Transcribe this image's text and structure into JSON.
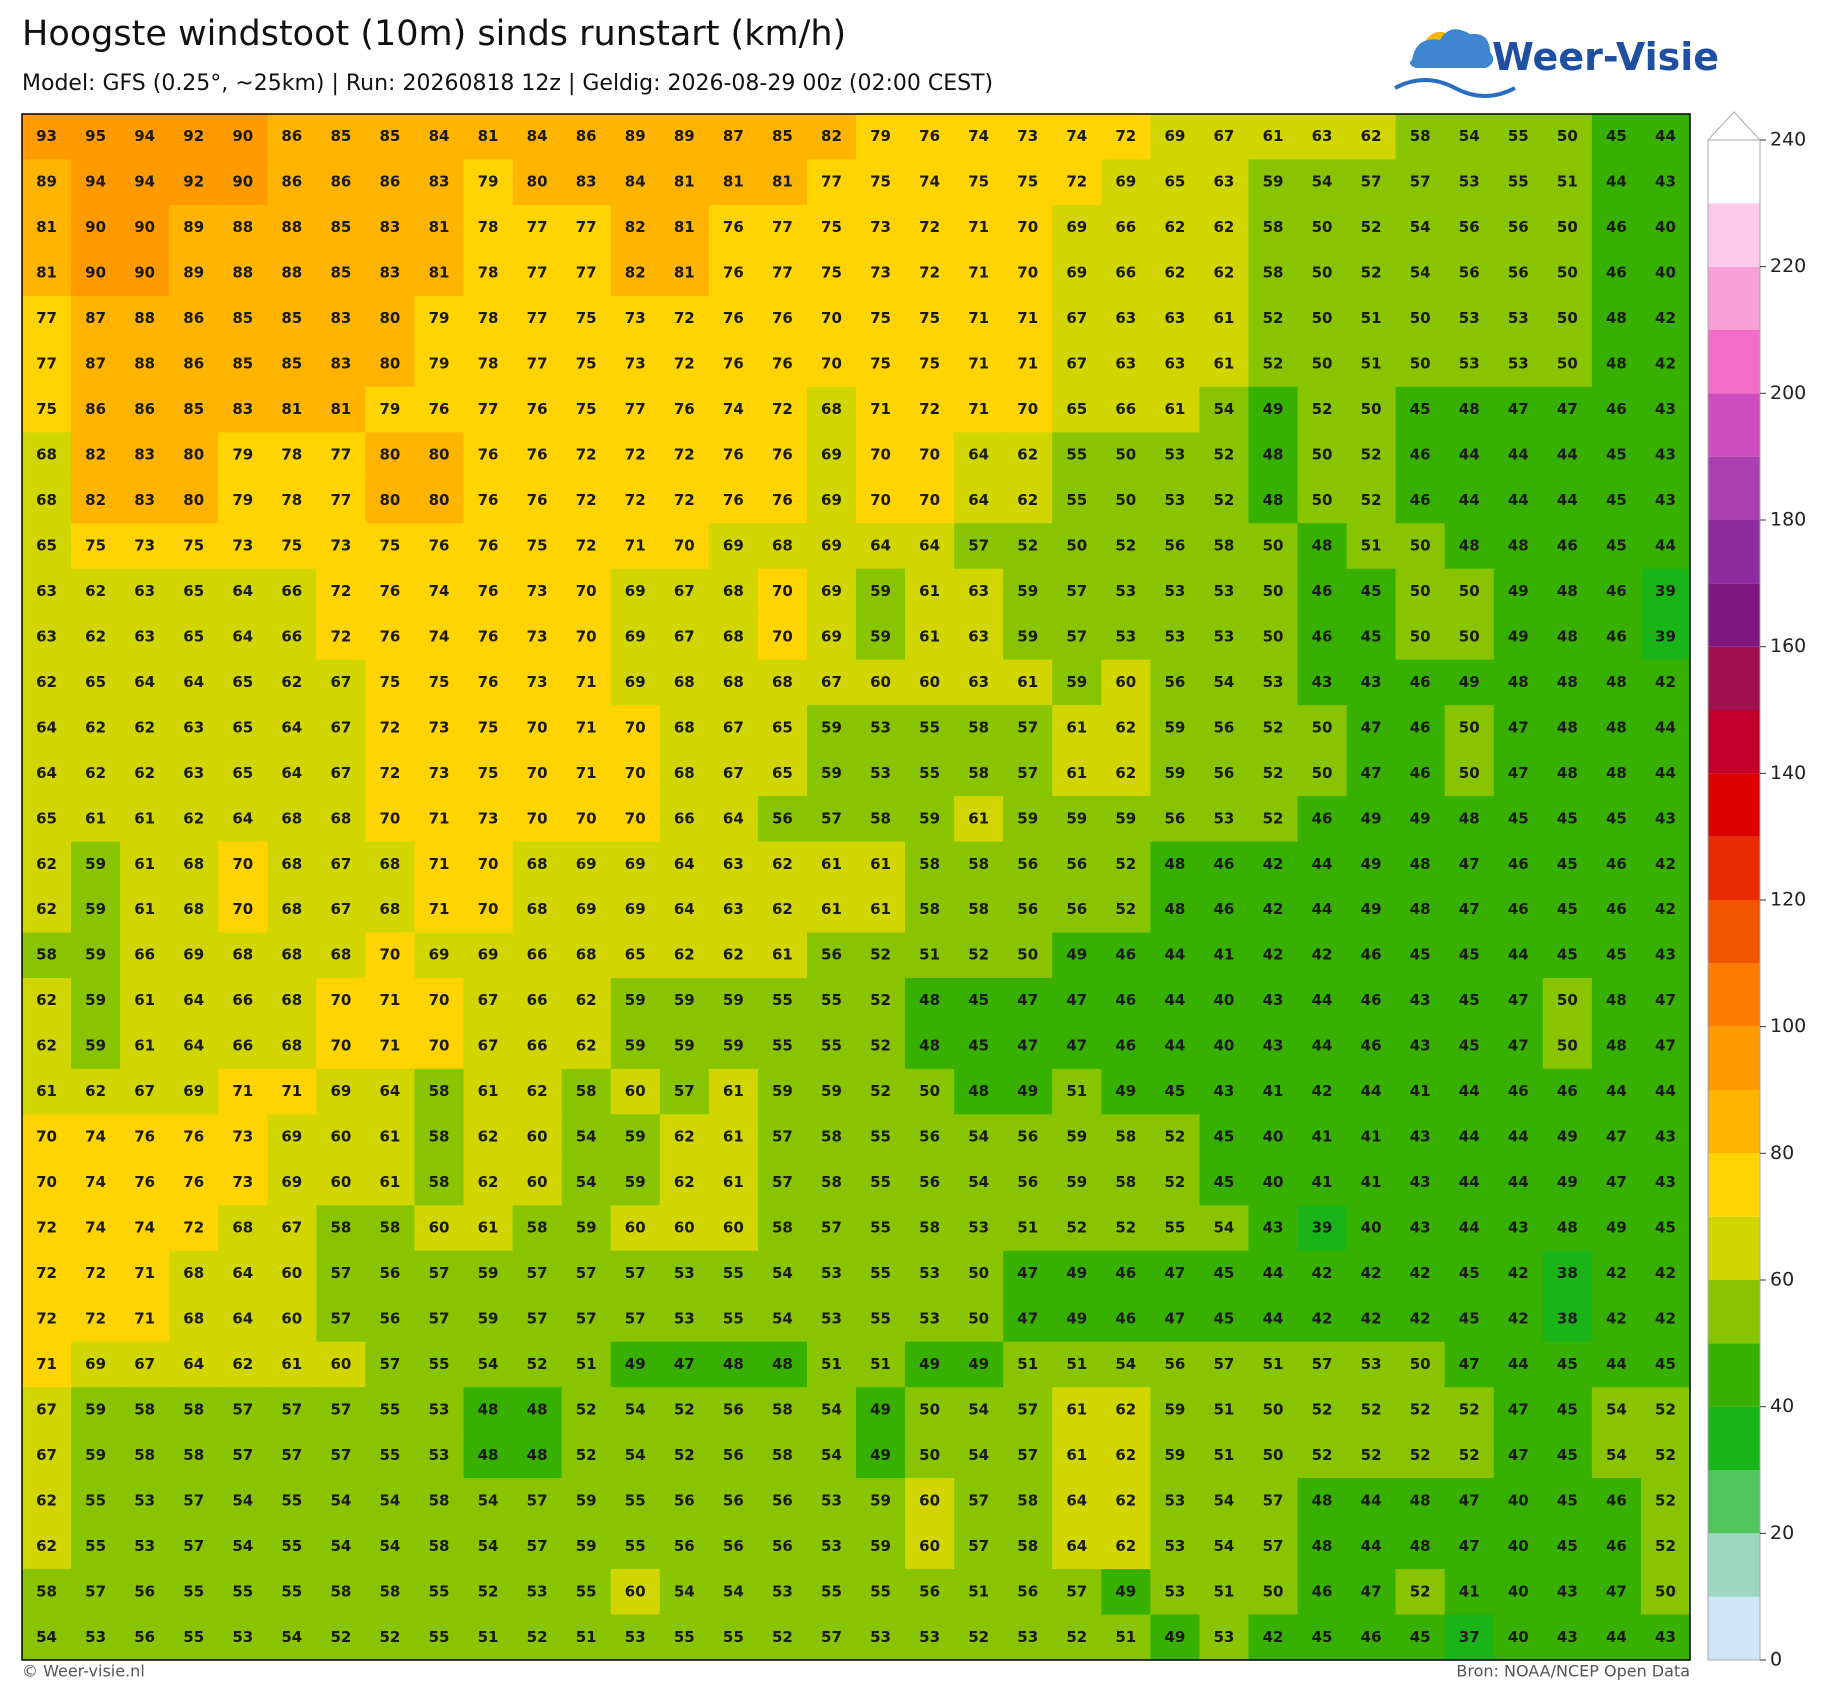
{
  "header": {
    "title": "Hoogste windstoot (10m) sinds runstart (km/h)",
    "subtitle": "Model: GFS (0.25°, ~25km)  |  Run: 20260818 12z  |  Geldig: 2026-08-29 00z (02:00 CEST)",
    "logo": "Weer-Visie"
  },
  "footer": {
    "left": "© Weer-visie.nl",
    "right": "Bron: NOAA/NCEP Open Data"
  },
  "colorbar": {
    "ylim": [
      0,
      240
    ],
    "yticks": [
      0,
      20,
      40,
      60,
      80,
      100,
      120,
      140,
      160,
      180,
      200,
      220,
      240
    ],
    "levels": [
      0,
      10,
      20,
      30,
      40,
      50,
      60,
      70,
      80,
      90,
      100,
      110,
      120,
      130,
      140,
      150,
      160,
      170,
      180,
      190,
      200,
      210,
      220,
      230,
      240
    ],
    "colors": [
      "#cde6f8",
      "#9ad8c0",
      "#52c45e",
      "#18b418",
      "#38b000",
      "#88c400",
      "#d2d600",
      "#ffd400",
      "#ffb400",
      "#ff9a00",
      "#ff7c00",
      "#f25400",
      "#e62c00",
      "#de0000",
      "#c00028",
      "#a0104e",
      "#7e1880",
      "#8c2ca0",
      "#ac40b0",
      "#d04cbe",
      "#f26cc8",
      "#f7a0d8",
      "#fccbe9",
      "#ffffff"
    ]
  },
  "grid": {
    "values": [
      [
        93,
        95,
        94,
        92,
        90,
        86,
        85,
        85,
        84,
        81,
        84,
        86,
        89,
        89,
        87,
        85,
        82,
        79,
        76,
        74,
        73,
        74,
        72,
        69,
        67,
        61,
        63,
        62,
        58,
        54,
        55,
        50,
        45,
        44
      ],
      [
        89,
        94,
        94,
        92,
        90,
        86,
        86,
        86,
        83,
        79,
        80,
        83,
        84,
        81,
        81,
        81,
        77,
        75,
        74,
        75,
        75,
        72,
        69,
        65,
        63,
        59,
        54,
        57,
        57,
        53,
        55,
        51,
        44,
        43
      ],
      [
        81,
        90,
        90,
        89,
        88,
        88,
        85,
        83,
        81,
        78,
        77,
        77,
        82,
        81,
        76,
        77,
        75,
        73,
        72,
        71,
        70,
        69,
        66,
        62,
        62,
        58,
        50,
        52,
        54,
        56,
        56,
        50,
        46,
        40
      ],
      [
        81,
        90,
        90,
        89,
        88,
        88,
        85,
        83,
        81,
        78,
        77,
        77,
        82,
        81,
        76,
        77,
        75,
        73,
        72,
        71,
        70,
        69,
        66,
        62,
        62,
        58,
        50,
        52,
        54,
        56,
        56,
        50,
        46,
        40
      ],
      [
        77,
        87,
        88,
        86,
        85,
        85,
        83,
        80,
        79,
        78,
        77,
        75,
        73,
        72,
        76,
        76,
        70,
        75,
        75,
        71,
        71,
        67,
        63,
        63,
        61,
        52,
        50,
        51,
        50,
        53,
        53,
        50,
        48,
        42
      ],
      [
        77,
        87,
        88,
        86,
        85,
        85,
        83,
        80,
        79,
        78,
        77,
        75,
        73,
        72,
        76,
        76,
        70,
        75,
        75,
        71,
        71,
        67,
        63,
        63,
        61,
        52,
        50,
        51,
        50,
        53,
        53,
        50,
        48,
        42
      ],
      [
        75,
        86,
        86,
        85,
        83,
        81,
        81,
        79,
        76,
        77,
        76,
        75,
        77,
        76,
        74,
        72,
        68,
        71,
        72,
        71,
        70,
        65,
        66,
        61,
        54,
        49,
        52,
        50,
        45,
        48,
        47,
        47,
        46,
        43
      ],
      [
        68,
        82,
        83,
        80,
        79,
        78,
        77,
        80,
        80,
        76,
        76,
        72,
        72,
        72,
        76,
        76,
        69,
        70,
        70,
        64,
        62,
        55,
        50,
        53,
        52,
        48,
        50,
        52,
        46,
        44,
        44,
        44,
        45,
        43
      ],
      [
        68,
        82,
        83,
        80,
        79,
        78,
        77,
        80,
        80,
        76,
        76,
        72,
        72,
        72,
        76,
        76,
        69,
        70,
        70,
        64,
        62,
        55,
        50,
        53,
        52,
        48,
        50,
        52,
        46,
        44,
        44,
        44,
        45,
        43
      ],
      [
        65,
        75,
        73,
        75,
        73,
        75,
        73,
        75,
        76,
        76,
        75,
        72,
        71,
        70,
        69,
        68,
        69,
        64,
        64,
        57,
        52,
        50,
        52,
        56,
        58,
        50,
        48,
        51,
        50,
        48,
        48,
        46,
        45,
        44
      ],
      [
        63,
        62,
        63,
        65,
        64,
        66,
        72,
        76,
        74,
        76,
        73,
        70,
        69,
        67,
        68,
        70,
        69,
        59,
        61,
        63,
        59,
        57,
        53,
        53,
        53,
        50,
        46,
        45,
        50,
        50,
        49,
        48,
        46,
        39
      ],
      [
        63,
        62,
        63,
        65,
        64,
        66,
        72,
        76,
        74,
        76,
        73,
        70,
        69,
        67,
        68,
        70,
        69,
        59,
        61,
        63,
        59,
        57,
        53,
        53,
        53,
        50,
        46,
        45,
        50,
        50,
        49,
        48,
        46,
        39
      ],
      [
        62,
        65,
        64,
        64,
        65,
        62,
        67,
        75,
        75,
        76,
        73,
        71,
        69,
        68,
        68,
        68,
        67,
        60,
        60,
        63,
        61,
        59,
        60,
        56,
        54,
        53,
        43,
        43,
        46,
        49,
        48,
        48,
        48,
        42
      ],
      [
        64,
        62,
        62,
        63,
        65,
        64,
        67,
        72,
        73,
        75,
        70,
        71,
        70,
        68,
        67,
        65,
        59,
        53,
        55,
        58,
        57,
        61,
        62,
        59,
        56,
        52,
        50,
        47,
        46,
        50,
        47,
        48,
        48,
        44
      ],
      [
        64,
        62,
        62,
        63,
        65,
        64,
        67,
        72,
        73,
        75,
        70,
        71,
        70,
        68,
        67,
        65,
        59,
        53,
        55,
        58,
        57,
        61,
        62,
        59,
        56,
        52,
        50,
        47,
        46,
        50,
        47,
        48,
        48,
        44
      ],
      [
        65,
        61,
        61,
        62,
        64,
        68,
        68,
        70,
        71,
        73,
        70,
        70,
        70,
        66,
        64,
        56,
        57,
        58,
        59,
        61,
        59,
        59,
        59,
        56,
        53,
        52,
        46,
        49,
        49,
        48,
        45,
        45,
        45,
        43
      ],
      [
        62,
        59,
        61,
        68,
        70,
        68,
        67,
        68,
        71,
        70,
        68,
        69,
        69,
        64,
        63,
        62,
        61,
        61,
        58,
        58,
        56,
        56,
        52,
        48,
        46,
        42,
        44,
        49,
        48,
        47,
        46,
        45,
        46,
        42
      ],
      [
        62,
        59,
        61,
        68,
        70,
        68,
        67,
        68,
        71,
        70,
        68,
        69,
        69,
        64,
        63,
        62,
        61,
        61,
        58,
        58,
        56,
        56,
        52,
        48,
        46,
        42,
        44,
        49,
        48,
        47,
        46,
        45,
        46,
        42
      ],
      [
        58,
        59,
        66,
        69,
        68,
        68,
        68,
        70,
        69,
        69,
        66,
        68,
        65,
        62,
        62,
        61,
        56,
        52,
        51,
        52,
        50,
        49,
        46,
        44,
        41,
        42,
        42,
        46,
        45,
        45,
        44,
        45,
        45,
        43
      ],
      [
        62,
        59,
        61,
        64,
        66,
        68,
        70,
        71,
        70,
        67,
        66,
        62,
        59,
        59,
        59,
        55,
        55,
        52,
        48,
        45,
        47,
        47,
        46,
        44,
        40,
        43,
        44,
        46,
        43,
        45,
        47,
        50,
        48,
        47
      ],
      [
        62,
        59,
        61,
        64,
        66,
        68,
        70,
        71,
        70,
        67,
        66,
        62,
        59,
        59,
        59,
        55,
        55,
        52,
        48,
        45,
        47,
        47,
        46,
        44,
        40,
        43,
        44,
        46,
        43,
        45,
        47,
        50,
        48,
        47
      ],
      [
        61,
        62,
        67,
        69,
        71,
        71,
        69,
        64,
        58,
        61,
        62,
        58,
        60,
        57,
        61,
        59,
        59,
        52,
        50,
        48,
        49,
        51,
        49,
        45,
        43,
        41,
        42,
        44,
        41,
        44,
        46,
        46,
        44,
        44
      ],
      [
        70,
        74,
        76,
        76,
        73,
        69,
        60,
        61,
        58,
        62,
        60,
        54,
        59,
        62,
        61,
        57,
        58,
        55,
        56,
        54,
        56,
        59,
        58,
        52,
        45,
        40,
        41,
        41,
        43,
        44,
        44,
        49,
        47,
        43
      ],
      [
        70,
        74,
        76,
        76,
        73,
        69,
        60,
        61,
        58,
        62,
        60,
        54,
        59,
        62,
        61,
        57,
        58,
        55,
        56,
        54,
        56,
        59,
        58,
        52,
        45,
        40,
        41,
        41,
        43,
        44,
        44,
        49,
        47,
        43
      ],
      [
        72,
        74,
        74,
        72,
        68,
        67,
        58,
        58,
        60,
        61,
        58,
        59,
        60,
        60,
        60,
        58,
        57,
        55,
        58,
        53,
        51,
        52,
        52,
        55,
        54,
        43,
        39,
        40,
        43,
        44,
        43,
        48,
        49,
        45
      ],
      [
        72,
        72,
        71,
        68,
        64,
        60,
        57,
        56,
        57,
        59,
        57,
        57,
        57,
        53,
        55,
        54,
        53,
        55,
        53,
        50,
        47,
        49,
        46,
        47,
        45,
        44,
        42,
        42,
        42,
        45,
        42,
        38,
        42,
        42
      ],
      [
        72,
        72,
        71,
        68,
        64,
        60,
        57,
        56,
        57,
        59,
        57,
        57,
        57,
        53,
        55,
        54,
        53,
        55,
        53,
        50,
        47,
        49,
        46,
        47,
        45,
        44,
        42,
        42,
        42,
        45,
        42,
        38,
        42,
        42
      ],
      [
        71,
        69,
        67,
        64,
        62,
        61,
        60,
        57,
        55,
        54,
        52,
        51,
        49,
        47,
        48,
        48,
        51,
        51,
        49,
        49,
        51,
        51,
        54,
        56,
        57,
        51,
        57,
        53,
        50,
        47,
        44,
        45,
        44,
        45
      ],
      [
        67,
        59,
        58,
        58,
        57,
        57,
        57,
        55,
        53,
        48,
        48,
        52,
        54,
        52,
        56,
        58,
        54,
        49,
        50,
        54,
        57,
        61,
        62,
        59,
        51,
        50,
        52,
        52,
        52,
        52,
        47,
        45,
        54,
        52
      ],
      [
        67,
        59,
        58,
        58,
        57,
        57,
        57,
        55,
        53,
        48,
        48,
        52,
        54,
        52,
        56,
        58,
        54,
        49,
        50,
        54,
        57,
        61,
        62,
        59,
        51,
        50,
        52,
        52,
        52,
        52,
        47,
        45,
        54,
        52
      ],
      [
        62,
        55,
        53,
        57,
        54,
        55,
        54,
        54,
        58,
        54,
        57,
        59,
        55,
        56,
        56,
        56,
        53,
        59,
        60,
        57,
        58,
        64,
        62,
        53,
        54,
        57,
        48,
        44,
        48,
        47,
        40,
        45,
        46,
        52
      ],
      [
        62,
        55,
        53,
        57,
        54,
        55,
        54,
        54,
        58,
        54,
        57,
        59,
        55,
        56,
        56,
        56,
        53,
        59,
        60,
        57,
        58,
        64,
        62,
        53,
        54,
        57,
        48,
        44,
        48,
        47,
        40,
        45,
        46,
        52
      ],
      [
        58,
        57,
        56,
        55,
        55,
        55,
        58,
        58,
        55,
        52,
        53,
        55,
        60,
        54,
        54,
        53,
        55,
        55,
        56,
        51,
        56,
        57,
        49,
        53,
        51,
        50,
        46,
        47,
        52,
        41,
        40,
        43,
        47,
        50
      ],
      [
        54,
        53,
        56,
        55,
        53,
        54,
        52,
        52,
        55,
        51,
        52,
        51,
        53,
        55,
        55,
        52,
        57,
        53,
        53,
        52,
        53,
        52,
        51,
        49,
        53,
        42,
        45,
        46,
        45,
        37,
        40,
        43,
        44,
        43
      ]
    ]
  }
}
